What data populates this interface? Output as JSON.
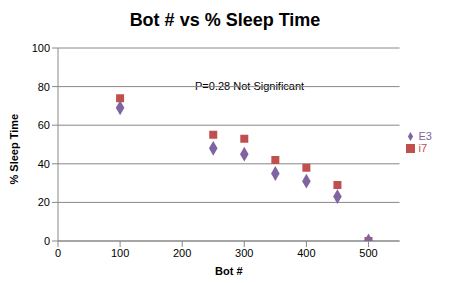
{
  "chart_data": {
    "type": "scatter",
    "title": "Bot # vs % Sleep Time",
    "x_label": "Bot #",
    "y_label": "% Sleep Time",
    "annotations": [
      "P=0.28 Not Significant"
    ],
    "x": [
      100,
      250,
      300,
      350,
      400,
      450,
      500
    ],
    "series": [
      {
        "name": "i7",
        "color": "#c0504d",
        "marker": "square",
        "values": [
          74,
          55,
          53,
          42,
          38,
          29,
          0
        ]
      },
      {
        "name": "E3",
        "color": "#8064a2",
        "marker": "diamond",
        "values": [
          69,
          48,
          45,
          35,
          31,
          23,
          0
        ]
      }
    ],
    "xlim": [
      0,
      550
    ],
    "xticks": [
      0,
      100,
      200,
      300,
      400,
      500
    ],
    "ylim": [
      0,
      100
    ],
    "yticks": [
      0,
      20,
      40,
      60,
      80,
      100
    ],
    "grid": true,
    "legend": "right"
  }
}
